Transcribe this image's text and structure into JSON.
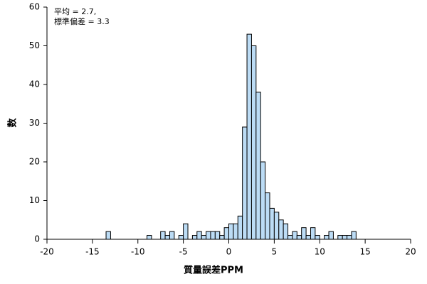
{
  "chart_data": {
    "type": "histogram",
    "xlabel": "質量誤差PPM",
    "ylabel": "数",
    "annotations": [
      "平均 = 2.7,",
      "標準偏差 = 3.3"
    ],
    "bins": [
      -13.5,
      -13,
      -12.5,
      -12,
      -11.5,
      -11,
      -10.5,
      -10,
      -9.5,
      -9,
      -8.5,
      -8,
      -7.5,
      -7,
      -6.5,
      -6,
      -5.5,
      -5,
      -4.5,
      -4,
      -3.5,
      -3,
      -2.5,
      -2,
      -1.5,
      -1,
      -0.5,
      0,
      0.5,
      1,
      1.5,
      2,
      2.5,
      3,
      3.5,
      4,
      4.5,
      5,
      5.5,
      6,
      6.5,
      7,
      7.5,
      8,
      8.5,
      9,
      9.5,
      10,
      10.5,
      11,
      11.5,
      12,
      12.5,
      13,
      13.5,
      14
    ],
    "values": [
      2,
      0,
      0,
      0,
      0,
      0,
      0,
      0,
      0,
      1,
      0,
      0,
      2,
      1,
      2,
      0,
      1,
      4,
      0,
      1,
      2,
      1,
      2,
      2,
      2,
      1,
      3,
      4,
      4,
      6,
      29,
      53,
      50,
      38,
      20,
      12,
      8,
      7,
      5,
      4,
      1,
      2,
      1,
      3,
      1,
      3,
      1,
      0,
      1,
      2,
      0,
      1,
      1,
      1,
      2
    ],
    "color": "#bcdcf5",
    "xlim": [
      -20,
      20
    ],
    "xticks": [
      -20,
      -15,
      -10,
      -5,
      0,
      5,
      10,
      15,
      20
    ],
    "ylim": [
      0,
      60
    ],
    "yticks": [
      0,
      10,
      20,
      30,
      40,
      50,
      60
    ]
  }
}
